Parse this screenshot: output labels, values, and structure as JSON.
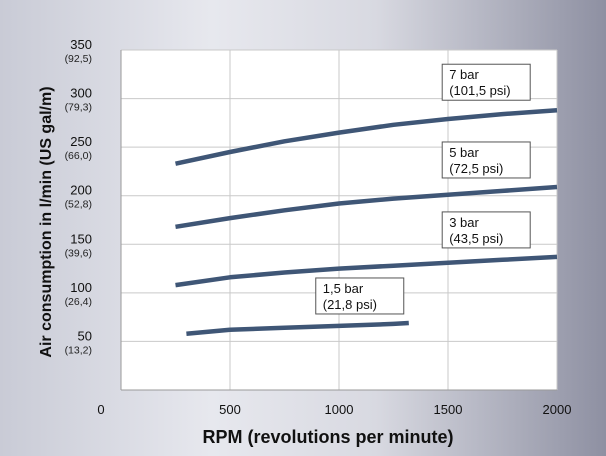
{
  "chart_data": {
    "type": "line",
    "title": "",
    "xlabel": "RPM (revolutions per minute)",
    "ylabel": "Air consumption in l/min (US gal/m)",
    "xlim": [
      0,
      2000
    ],
    "ylim": [
      0,
      350
    ],
    "xticks": [
      {
        "value": 0,
        "label": "0"
      },
      {
        "value": 500,
        "label": "500"
      },
      {
        "value": 1000,
        "label": "1000"
      },
      {
        "value": 1500,
        "label": "1500"
      },
      {
        "value": 2000,
        "label": "2000"
      }
    ],
    "yticks": [
      {
        "value": 50,
        "label": "50",
        "sublabel": "(13,2)"
      },
      {
        "value": 100,
        "label": "100",
        "sublabel": "(26,4)"
      },
      {
        "value": 150,
        "label": "150",
        "sublabel": "(39,6)"
      },
      {
        "value": 200,
        "label": "200",
        "sublabel": "(52,8)"
      },
      {
        "value": 250,
        "label": "250",
        "sublabel": "(66,0)"
      },
      {
        "value": 300,
        "label": "300",
        "sublabel": "(79,3)"
      },
      {
        "value": 350,
        "label": "350",
        "sublabel": "(92,5)"
      }
    ],
    "grid": true,
    "line_color": "#3f5676",
    "series": [
      {
        "name_line1": "7 bar",
        "name_line2": "(101,5 psi)",
        "x": [
          250,
          500,
          750,
          1000,
          1250,
          1500,
          1750,
          2000
        ],
        "y": [
          233,
          245,
          256,
          265,
          273,
          279,
          284,
          288
        ]
      },
      {
        "name_line1": "5 bar",
        "name_line2": "(72,5 psi)",
        "x": [
          250,
          500,
          750,
          1000,
          1250,
          1500,
          1750,
          2000
        ],
        "y": [
          168,
          177,
          185,
          192,
          197,
          201,
          205,
          209
        ]
      },
      {
        "name_line1": "3 bar",
        "name_line2": "(43,5 psi)",
        "x": [
          250,
          500,
          750,
          1000,
          1250,
          1500,
          1750,
          2000
        ],
        "y": [
          108,
          116,
          121,
          125,
          128,
          131,
          134,
          137
        ]
      },
      {
        "name_line1": "1,5 bar",
        "name_line2": "(21,8 psi)",
        "x": [
          300,
          500,
          750,
          1000,
          1250,
          1320
        ],
        "y": [
          58,
          62,
          64,
          66,
          68,
          69
        ]
      }
    ]
  }
}
